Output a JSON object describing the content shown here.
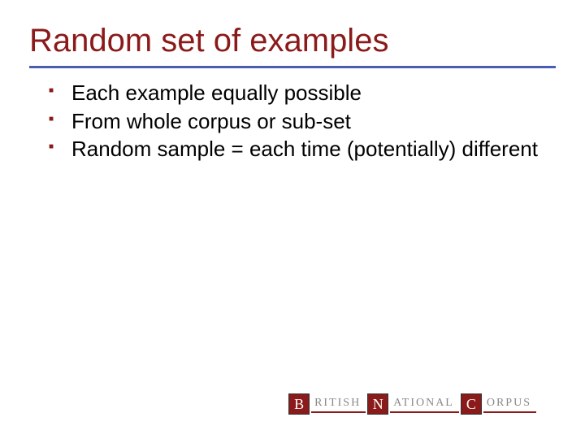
{
  "title": "Random set of examples",
  "title_color": "#8b1a1a",
  "title_fontsize": 40,
  "divider_color": "#4a5db0",
  "bullets": {
    "items": [
      "Each example equally possible",
      "From whole corpus or sub-set",
      "Random sample = each time (potentially) different"
    ],
    "marker_color": "#8b1a1a",
    "text_color": "#000000",
    "fontsize": 26
  },
  "logo": {
    "parts": [
      {
        "letter": "B",
        "word": "RITISH"
      },
      {
        "letter": "N",
        "word": "ATIONAL"
      },
      {
        "letter": "C",
        "word": "ORPUS"
      }
    ],
    "box_bg": "#8b1a1a",
    "box_fg": "#ffffff",
    "word_color": "#888888",
    "underline_color": "#8b1a1a"
  },
  "background_color": "#ffffff"
}
